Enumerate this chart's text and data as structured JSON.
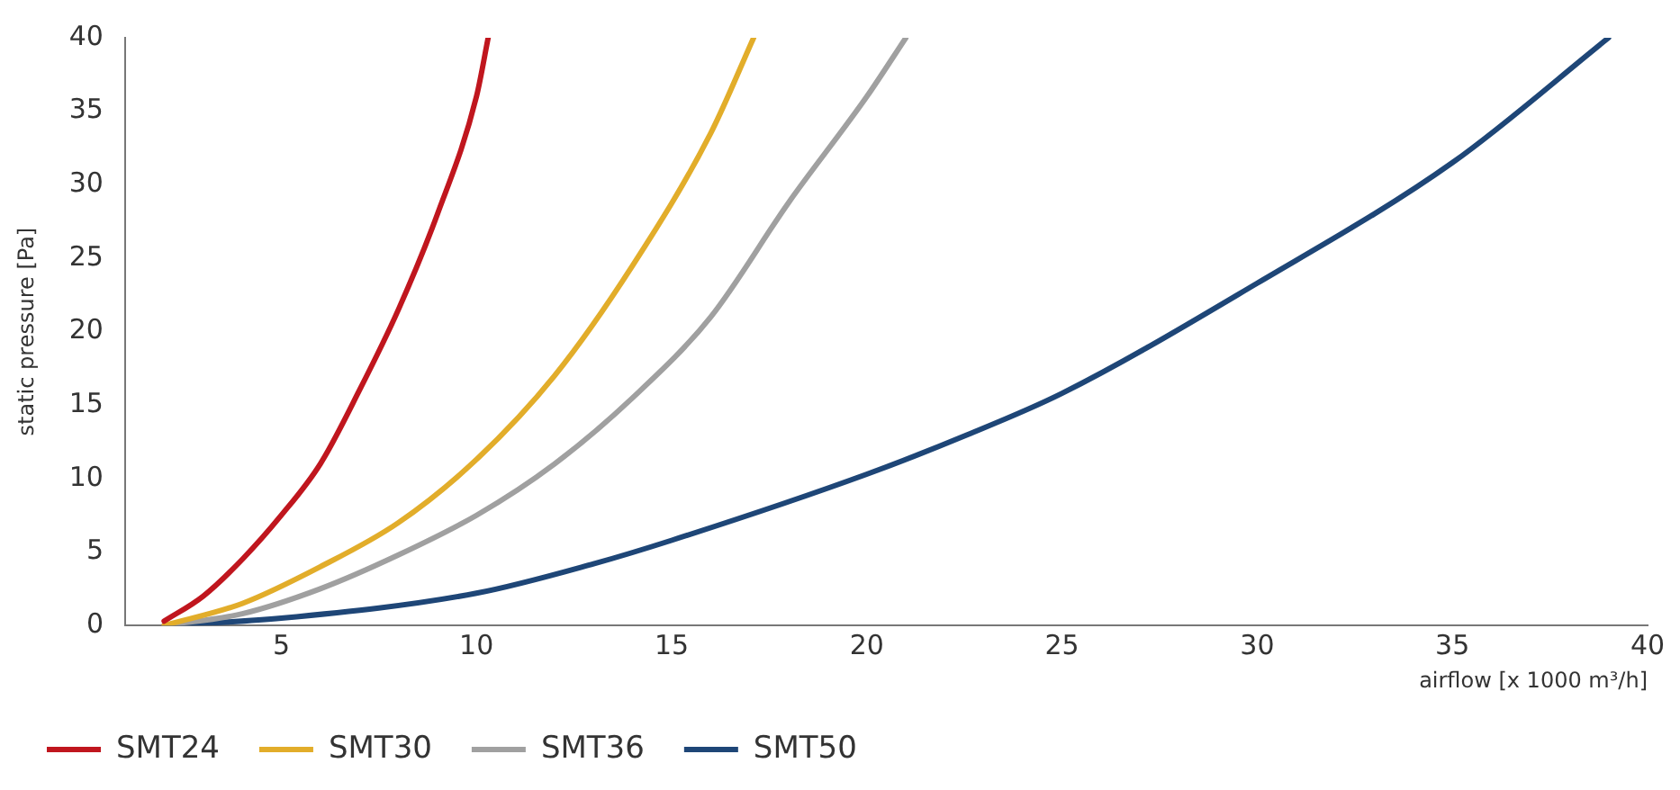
{
  "chart_data": {
    "type": "line",
    "xlabel": "airflow [x 1000 m³/h]",
    "ylabel": "static pressure [Pa]",
    "xlim": [
      1,
      40
    ],
    "xticks": [
      5,
      10,
      15,
      20,
      25,
      30,
      35,
      40
    ],
    "ylim": [
      0,
      40
    ],
    "yticks": [
      0,
      5,
      10,
      15,
      20,
      25,
      30,
      35,
      40
    ],
    "grid": false,
    "legend": "bottom",
    "marker": "none",
    "line_style": "solid",
    "series": [
      {
        "name": "SMT24",
        "color": "#c0161e",
        "x": [
          2,
          3,
          4,
          5,
          6,
          7,
          8,
          9,
          10,
          10.3
        ],
        "values": [
          0.3,
          2,
          4.5,
          7.5,
          11,
          16,
          21.5,
          28,
          36,
          40
        ]
      },
      {
        "name": "SMT30",
        "color": "#e2ad2a",
        "x": [
          2,
          4,
          6,
          8,
          10,
          12,
          14,
          16,
          17.1
        ],
        "values": [
          0,
          1.5,
          4,
          7,
          11.3,
          17,
          24.5,
          33.5,
          40
        ]
      },
      {
        "name": "SMT36",
        "color": "#a0a0a0",
        "x": [
          2,
          4,
          6,
          8,
          10,
          12,
          14,
          16,
          18,
          20,
          21
        ],
        "values": [
          0,
          0.8,
          2.5,
          4.8,
          7.5,
          11,
          15.5,
          21,
          28.8,
          36,
          40
        ]
      },
      {
        "name": "SMT50",
        "color": "#1e4677",
        "x": [
          2,
          5,
          10,
          13,
          15,
          20,
          22.5,
          25,
          30,
          35,
          39
        ],
        "values": [
          0,
          0.5,
          2.2,
          4.2,
          5.8,
          10.3,
          12.9,
          15.8,
          23.3,
          31.5,
          40
        ]
      }
    ]
  }
}
